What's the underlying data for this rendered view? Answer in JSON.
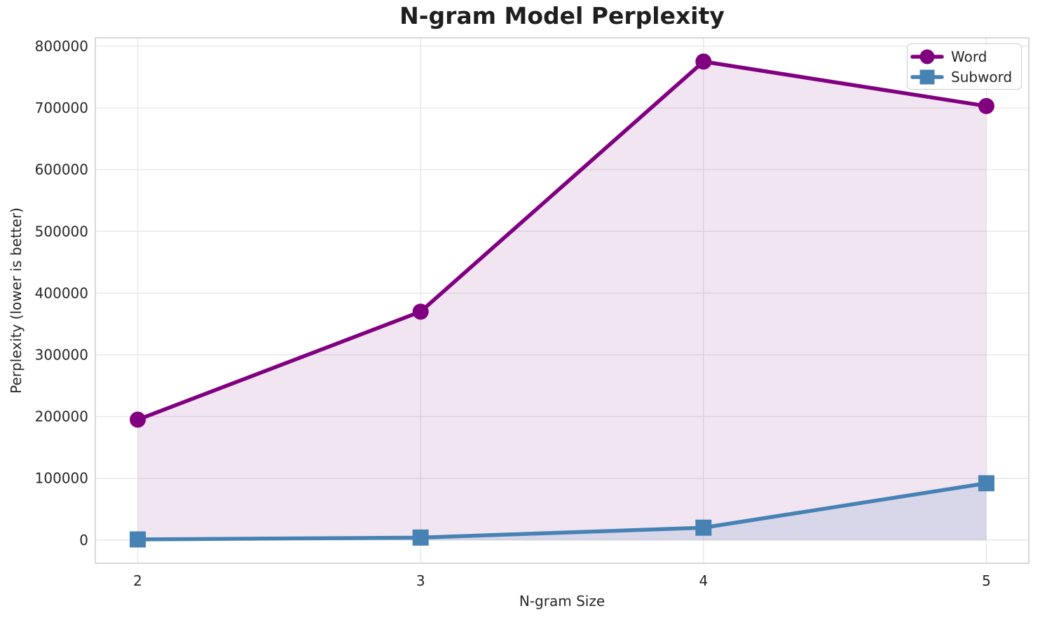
{
  "chart_data": {
    "type": "line",
    "title": "N-gram Model Perplexity",
    "xlabel": "N-gram Size",
    "ylabel": "Perplexity (lower is better)",
    "x": [
      2,
      3,
      4,
      5
    ],
    "series": [
      {
        "name": "Word",
        "color": "#800080",
        "marker": "circle",
        "fill_alpha": 0.1,
        "values": [
          195000,
          370000,
          775000,
          703000
        ]
      },
      {
        "name": "Subword",
        "color": "#4682B4",
        "marker": "square",
        "fill_alpha": 0.15,
        "values": [
          1000,
          4000,
          20000,
          92000
        ]
      }
    ],
    "fill_to_zero": true,
    "xlim": [
      1.85,
      5.15
    ],
    "ylim": [
      -37600,
      813500
    ],
    "xticks": {
      "values": [
        2,
        3,
        4,
        5
      ],
      "labels": [
        "2",
        "3",
        "4",
        "5"
      ]
    },
    "yticks": {
      "values": [
        0,
        100000,
        200000,
        300000,
        400000,
        500000,
        600000,
        700000,
        800000
      ],
      "labels": [
        "0",
        "100000",
        "200000",
        "300000",
        "400000",
        "500000",
        "600000",
        "700000",
        "800000"
      ]
    },
    "grid": true,
    "legend": {
      "position": "upper right",
      "items": [
        "Word",
        "Subword"
      ]
    },
    "colors": {
      "grid": "#e8e8e8",
      "spine": "#cccccc",
      "text": "#262626",
      "title": "#1f1f1f",
      "legend_border": "#cccccc",
      "background": "#ffffff"
    }
  }
}
